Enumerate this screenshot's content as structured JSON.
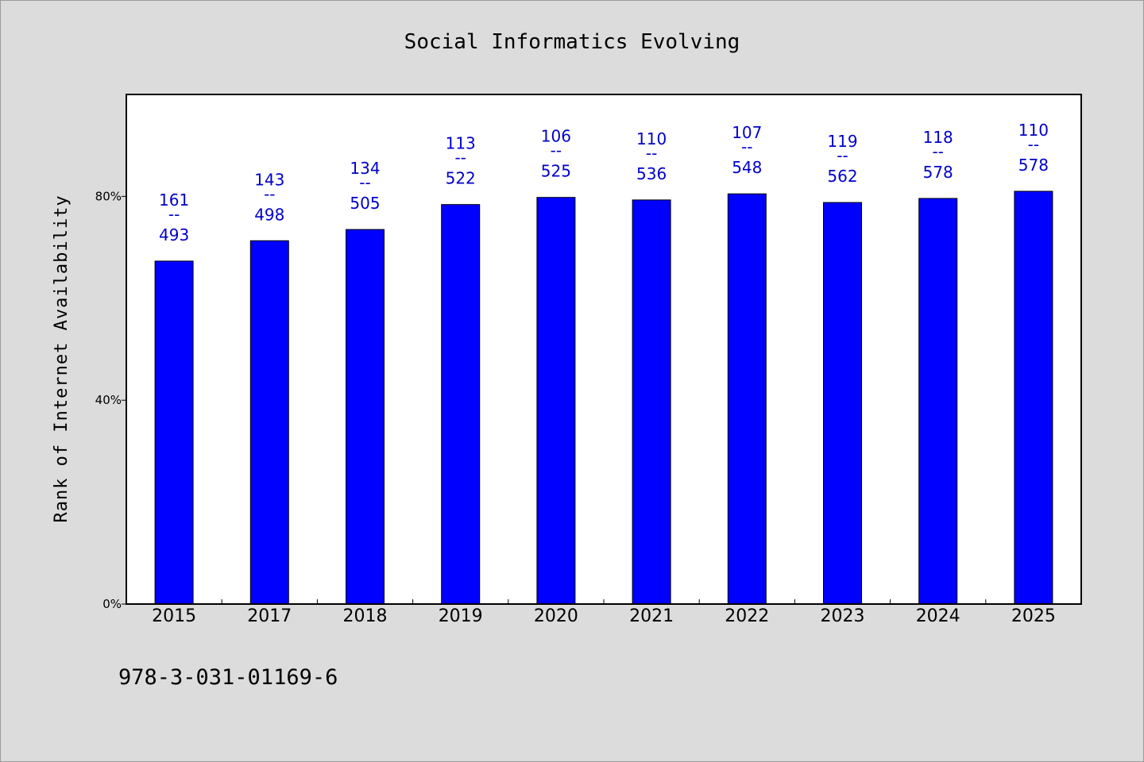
{
  "chart_data": {
    "type": "bar",
    "title": "Social Informatics Evolving",
    "xlabel": "",
    "ylabel": "Rank of Internet Availability",
    "ylim": [
      0,
      100
    ],
    "yticks": [
      0,
      40,
      80
    ],
    "ytick_labels": [
      "0%",
      "40%",
      "80%"
    ],
    "categories": [
      "2015",
      "2017",
      "2018",
      "2019",
      "2020",
      "2021",
      "2022",
      "2023",
      "2024",
      "2025"
    ],
    "values": [
      67.3,
      71.3,
      73.5,
      78.4,
      79.8,
      79.3,
      80.5,
      78.8,
      79.6,
      81.0
    ],
    "data_labels": [
      [
        "161",
        "--",
        "493"
      ],
      [
        "143",
        "--",
        "498"
      ],
      [
        "134",
        "--",
        "505"
      ],
      [
        "113",
        "--",
        "522"
      ],
      [
        "106",
        "--",
        "525"
      ],
      [
        "110",
        "--",
        "536"
      ],
      [
        "107",
        "--",
        "548"
      ],
      [
        "119",
        "--",
        "562"
      ],
      [
        "118",
        "--",
        "578"
      ],
      [
        "110",
        "--",
        "578"
      ]
    ],
    "bar_color": "#0000ff",
    "label_color": "#0000cc",
    "plot_background": "#ffffff",
    "page_background": "#dcdcdc",
    "grid": false,
    "legend": "none"
  },
  "footnote": "978-3-031-01169-6"
}
